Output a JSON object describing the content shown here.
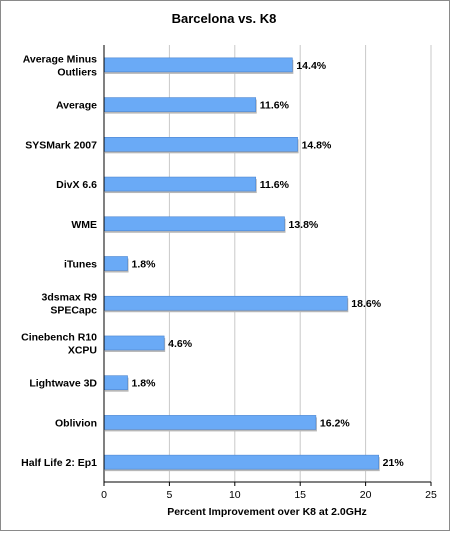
{
  "chart_data": {
    "type": "bar",
    "orientation": "horizontal",
    "title": "Barcelona vs. K8",
    "xlabel": "Percent Improvement over K8 at 2.0GHz",
    "ylabel": "",
    "xlim": [
      0,
      25
    ],
    "xticks": [
      0,
      5,
      10,
      15,
      20,
      25
    ],
    "grid": true,
    "categories": [
      [
        "Average Minus",
        "Outliers"
      ],
      [
        "Average"
      ],
      [
        "SYSMark 2007"
      ],
      [
        "DivX 6.6"
      ],
      [
        "WME"
      ],
      [
        "iTunes"
      ],
      [
        "3dsmax R9",
        "SPECapc"
      ],
      [
        "Cinebench R10",
        "XCPU"
      ],
      [
        "Lightwave 3D"
      ],
      [
        "Oblivion"
      ],
      [
        "Half Life 2: Ep1"
      ]
    ],
    "values": [
      14.4,
      11.6,
      14.8,
      11.6,
      13.8,
      1.8,
      18.6,
      4.6,
      1.8,
      16.2,
      21
    ],
    "value_labels": [
      "14.4%",
      "11.6%",
      "14.8%",
      "11.6%",
      "13.8%",
      "1.8%",
      "18.6%",
      "4.6%",
      "1.8%",
      "16.2%",
      "21%"
    ],
    "bar_color": "#6aaaf6",
    "bar_edge_color": "#4d86d0",
    "grid_color": "#c9c9c9"
  }
}
